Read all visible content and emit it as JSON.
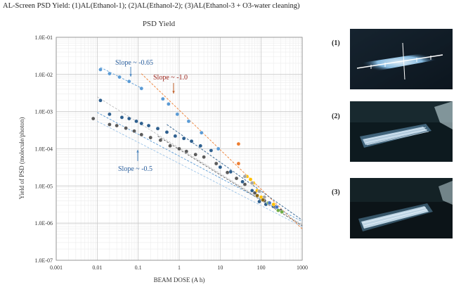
{
  "header": {
    "text": "AL-Screen PSD Yield: (1)AL(Ethanol-1); (2)AL(Ethanol-2); (3)AL(Ethanol-3 + O3-water cleaning)"
  },
  "photos": [
    {
      "label": "(1)"
    },
    {
      "label": "(2)"
    },
    {
      "label": "(3)"
    }
  ],
  "chart_data": {
    "type": "scatter",
    "title": "PSD Yield",
    "xlabel": "BEAM DOSE (A h)",
    "ylabel": "Yield of PSD (molecule/photon)",
    "xscale": "log",
    "yscale": "log",
    "xlim": [
      0.001,
      1000
    ],
    "ylim": [
      1e-07,
      0.1
    ],
    "x_tick_labels": [
      "0.001",
      "0.01",
      "0.1",
      "1",
      "10",
      "100",
      "1000"
    ],
    "y_tick_labels": [
      "1.0E-07",
      "1.0E-06",
      "1.0E-05",
      "1.0E-04",
      "1.0E-03",
      "1.0E-02",
      "1.0E-01"
    ],
    "grid": true,
    "annotations": [
      {
        "text": "Slope ~ -0.65",
        "x": 0.013,
        "y": 0.016,
        "color": "#2a5f9e"
      },
      {
        "text": "Slope ~ -1.0",
        "x": 0.2,
        "y": 0.0075,
        "color": "#9a1f16"
      },
      {
        "text": "Slope ~ -0.5",
        "x": 0.07,
        "y": 2.8e-05,
        "color": "#2a5f9e"
      }
    ],
    "series": [
      {
        "color": "#5b9bd5",
        "points": [
          [
            0.012,
            0.0135
          ],
          [
            0.02,
            0.0105
          ],
          [
            0.035,
            0.0085
          ],
          [
            0.06,
            0.0065
          ],
          [
            0.12,
            0.0042
          ],
          [
            0.4,
            0.0022
          ],
          [
            0.55,
            0.0016
          ],
          [
            0.9,
            0.00085
          ],
          [
            1.7,
            0.00055
          ],
          [
            3.5,
            0.00027
          ],
          [
            9,
            0.0001
          ]
        ]
      },
      {
        "color": "#2e5f8e",
        "points": [
          [
            0.012,
            0.002
          ],
          [
            0.02,
            0.00085
          ],
          [
            0.04,
            0.0007
          ],
          [
            0.06,
            0.00065
          ],
          [
            0.09,
            0.00055
          ],
          [
            0.12,
            0.00048
          ],
          [
            0.18,
            0.00042
          ],
          [
            0.3,
            0.00035
          ],
          [
            0.5,
            0.00028
          ],
          [
            0.8,
            0.00022
          ],
          [
            1.3,
            0.00019
          ],
          [
            2,
            0.00016
          ],
          [
            3.3,
            0.00012
          ],
          [
            6,
            9e-05
          ],
          [
            10,
            3.2e-05
          ],
          [
            18,
            2.4e-05
          ],
          [
            35,
            1.3e-05
          ],
          [
            60,
            7.5e-06
          ],
          [
            90,
            3.8e-06
          ],
          [
            130,
            3.2e-06
          ],
          [
            200,
            2.8e-06
          ]
        ]
      },
      {
        "color": "#5a5a5a",
        "points": [
          [
            0.008,
            0.00065
          ],
          [
            0.02,
            0.00045
          ],
          [
            0.03,
            0.00042
          ],
          [
            0.05,
            0.00036
          ],
          [
            0.08,
            0.0003
          ],
          [
            0.12,
            0.00024
          ],
          [
            0.2,
            0.0002
          ],
          [
            0.35,
            0.00017
          ],
          [
            0.6,
            0.00012
          ],
          [
            1,
            0.0001
          ],
          [
            1.5,
            8.5e-05
          ],
          [
            2.5,
            7e-05
          ],
          [
            4,
            6e-05
          ],
          [
            8,
            4e-05
          ],
          [
            15,
            2.3e-05
          ],
          [
            25,
            1.6e-05
          ],
          [
            40,
            1.1e-05
          ],
          [
            70,
            6.5e-06
          ],
          [
            120,
            4e-06
          ],
          [
            220,
            2.8e-06
          ],
          [
            300,
            2.2e-06
          ]
        ]
      },
      {
        "color": "#ed7d31",
        "points": [
          [
            28,
            0.000135
          ],
          [
            28,
            4e-05
          ]
        ]
      },
      {
        "color": "#ffc000",
        "points": [
          [
            45,
            1.8e-05
          ],
          [
            55,
            1.5e-05
          ],
          [
            65,
            1.2e-05
          ],
          [
            80,
            7.5e-06
          ],
          [
            100,
            5e-06
          ],
          [
            200,
            3.2e-06
          ]
        ]
      },
      {
        "color": "#a5a5a5",
        "points": [
          [
            40,
            1.8e-05
          ],
          [
            60,
            1.2e-05
          ],
          [
            90,
            7.2e-06
          ],
          [
            120,
            5e-06
          ]
        ]
      },
      {
        "color": "#8b6914",
        "points": [
          [
            80,
            5.5e-06
          ],
          [
            110,
            4.2e-06
          ]
        ]
      },
      {
        "color": "#70ad47",
        "points": [
          [
            150,
            3.5e-06
          ],
          [
            260,
            2.2e-06
          ],
          [
            320,
            2e-06
          ]
        ]
      },
      {
        "color": "#4472c4",
        "points": [
          [
            160,
            3.5e-06
          ],
          [
            240,
            2.7e-06
          ]
        ]
      }
    ],
    "trendlines": [
      {
        "color": "#ed7d31",
        "from": [
          0.12,
          0.0105
        ],
        "to": [
          1000,
          7e-07
        ]
      },
      {
        "color": "#5b9bd5",
        "from": [
          0.012,
          0.0155
        ],
        "to": [
          0.12,
          0.0043
        ]
      },
      {
        "color": "#bdbdbd",
        "from": [
          0.01,
          0.0025
        ],
        "to": [
          1000,
          9e-07
        ]
      },
      {
        "color": "#5b9bd5",
        "from": [
          0.01,
          0.00095
        ],
        "to": [
          1000,
          1.1e-06
        ]
      },
      {
        "color": "#2e5f8e",
        "from": [
          0.5,
          0.00045
        ],
        "to": [
          1000,
          1.2e-06
        ]
      },
      {
        "color": "#9dc3e6",
        "from": [
          0.01,
          0.00055
        ],
        "to": [
          1000,
          8e-07
        ]
      },
      {
        "color": "#5a5a5a",
        "from": [
          0.3,
          0.00022
        ],
        "to": [
          1000,
          8.5e-07
        ]
      }
    ]
  }
}
